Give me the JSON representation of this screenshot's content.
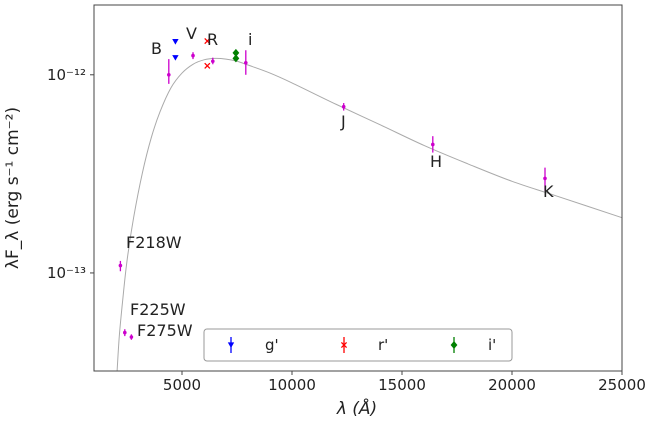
{
  "chart_data": {
    "type": "scatter",
    "x_scale": "linear",
    "y_scale": "log",
    "xlim": [
      1000,
      25000
    ],
    "ylim": [
      3.2e-14,
      2.25e-12
    ],
    "xlabel": "λ (Å)",
    "ylabel": "λF_λ (erg s⁻¹ cm⁻²)",
    "x_ticks": [
      {
        "value": 5000,
        "label": "5000"
      },
      {
        "value": 10000,
        "label": "10000"
      },
      {
        "value": 15000,
        "label": "15000"
      },
      {
        "value": 20000,
        "label": "20000"
      },
      {
        "value": 25000,
        "label": "25000"
      }
    ],
    "y_ticks": [
      {
        "value": 1e-13,
        "label": "10⁻¹³"
      },
      {
        "value": 1e-12,
        "label": "10⁻¹²"
      }
    ],
    "grid": false,
    "model_curve": {
      "color": "#aaaaaa",
      "points": [
        [
          2050,
          3.2e-14
        ],
        [
          2150,
          4.8e-14
        ],
        [
          2300,
          7.2e-14
        ],
        [
          2500,
          1.15e-13
        ],
        [
          2800,
          1.9e-13
        ],
        [
          3200,
          3.2e-13
        ],
        [
          3600,
          4.8e-13
        ],
        [
          4000,
          6.5e-13
        ],
        [
          4500,
          8.6e-13
        ],
        [
          5000,
          1.02e-12
        ],
        [
          5500,
          1.13e-12
        ],
        [
          6000,
          1.19e-12
        ],
        [
          6500,
          1.21e-12
        ],
        [
          7000,
          1.2e-12
        ],
        [
          7500,
          1.17e-12
        ],
        [
          8000,
          1.12e-12
        ],
        [
          9000,
          1.02e-12
        ],
        [
          10000,
          9.1e-13
        ],
        [
          12000,
          7.1e-13
        ],
        [
          14000,
          5.6e-13
        ],
        [
          16000,
          4.4e-13
        ],
        [
          18000,
          3.55e-13
        ],
        [
          20000,
          2.9e-13
        ],
        [
          22000,
          2.45e-13
        ],
        [
          25000,
          1.9e-13
        ]
      ]
    },
    "series": [
      {
        "name": "",
        "color": "#cc00cc",
        "marker": "point-with-errorbar",
        "points": [
          {
            "label": "F218W",
            "x": 2200,
            "y": 1.09e-13,
            "yerr_lo": 1.02e-13,
            "yerr_hi": 1.15e-13
          },
          {
            "label": "F225W",
            "x": 2400,
            "y": 5e-14,
            "yerr_lo": 4.8e-14,
            "yerr_hi": 5.2e-14
          },
          {
            "label": "F275W",
            "x": 2700,
            "y": 4.75e-14,
            "yerr_lo": 4.6e-14,
            "yerr_hi": 4.9e-14
          },
          {
            "label": "B",
            "x": 4400,
            "y": 1e-12,
            "yerr_lo": 9e-13,
            "yerr_hi": 1.2e-12
          },
          {
            "label": "V",
            "x": 5500,
            "y": 1.25e-12,
            "yerr_lo": 1.2e-12,
            "yerr_hi": 1.3e-12
          },
          {
            "label": "R",
            "x": 6400,
            "y": 1.17e-12,
            "yerr_lo": 1.13e-12,
            "yerr_hi": 1.22e-12
          },
          {
            "label": "i",
            "x": 7900,
            "y": 1.15e-12,
            "yerr_lo": 1e-12,
            "yerr_hi": 1.33e-12
          },
          {
            "label": "J",
            "x": 12350,
            "y": 6.9e-13,
            "yerr_lo": 6.6e-13,
            "yerr_hi": 7.2e-13
          },
          {
            "label": "H",
            "x": 16400,
            "y": 4.45e-13,
            "yerr_lo": 4.05e-13,
            "yerr_hi": 4.9e-13
          },
          {
            "label": "K",
            "x": 21500,
            "y": 3e-13,
            "yerr_lo": 2.6e-13,
            "yerr_hi": 3.4e-13
          }
        ]
      },
      {
        "name": "g'",
        "color": "#0000ff",
        "marker": "triangle-down",
        "points": [
          {
            "x": 4700,
            "y": 1.47e-12
          },
          {
            "x": 4700,
            "y": 1.22e-12
          }
        ]
      },
      {
        "name": "r'",
        "color": "#ff0000",
        "marker": "x",
        "points": [
          {
            "x": 6150,
            "y": 1.48e-12
          },
          {
            "x": 6150,
            "y": 1.11e-12
          }
        ]
      },
      {
        "name": "i'",
        "color": "#008000",
        "marker": "diamond",
        "points": [
          {
            "x": 7450,
            "y": 1.29e-12
          },
          {
            "x": 7450,
            "y": 1.21e-12
          }
        ]
      }
    ],
    "legend": {
      "position": "bottom-center",
      "entries": [
        {
          "label": "g'",
          "color": "#0000ff",
          "marker": "triangle-down"
        },
        {
          "label": "r'",
          "color": "#ff0000",
          "marker": "x"
        },
        {
          "label": "i'",
          "color": "#008000",
          "marker": "diamond"
        }
      ]
    }
  }
}
